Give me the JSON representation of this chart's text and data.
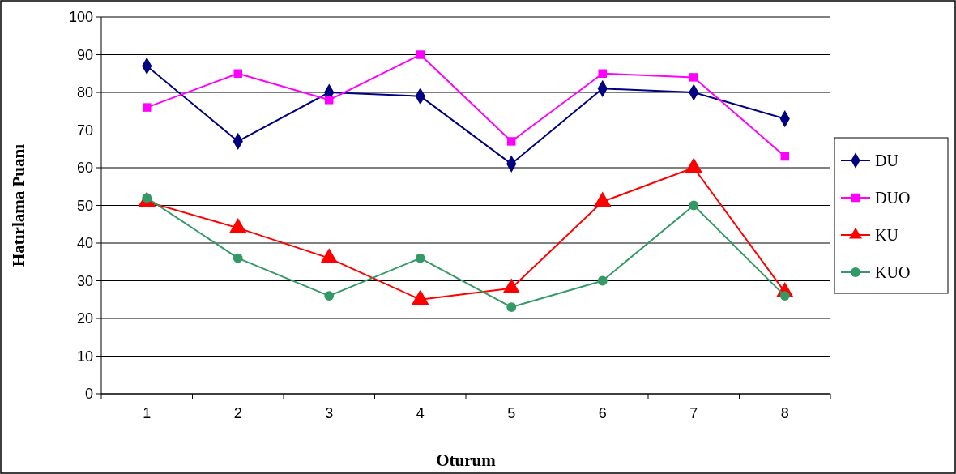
{
  "chart_data": {
    "type": "line",
    "xlabel": "Oturum",
    "ylabel": "Hatırlama  Puanı",
    "categories": [
      "1",
      "2",
      "3",
      "4",
      "5",
      "6",
      "7",
      "8"
    ],
    "ylim": [
      0,
      100
    ],
    "yticks": [
      0,
      10,
      20,
      30,
      40,
      50,
      60,
      70,
      80,
      90,
      100
    ],
    "grid": "y",
    "legend": "right",
    "series": [
      {
        "name": "DU",
        "color": "#000080",
        "marker": "diamond",
        "values": [
          87,
          67,
          80,
          79,
          61,
          81,
          80,
          73
        ]
      },
      {
        "name": "DUO",
        "color": "#ff00ff",
        "marker": "square",
        "values": [
          76,
          85,
          78,
          90,
          67,
          85,
          84,
          63
        ]
      },
      {
        "name": "KU",
        "color": "#ff0000",
        "marker": "triangle",
        "values": [
          51,
          44,
          36,
          25,
          28,
          51,
          60,
          27
        ]
      },
      {
        "name": "KUO",
        "color": "#339966",
        "marker": "circle",
        "values": [
          52,
          36,
          26,
          36,
          23,
          30,
          50,
          26
        ]
      }
    ]
  }
}
